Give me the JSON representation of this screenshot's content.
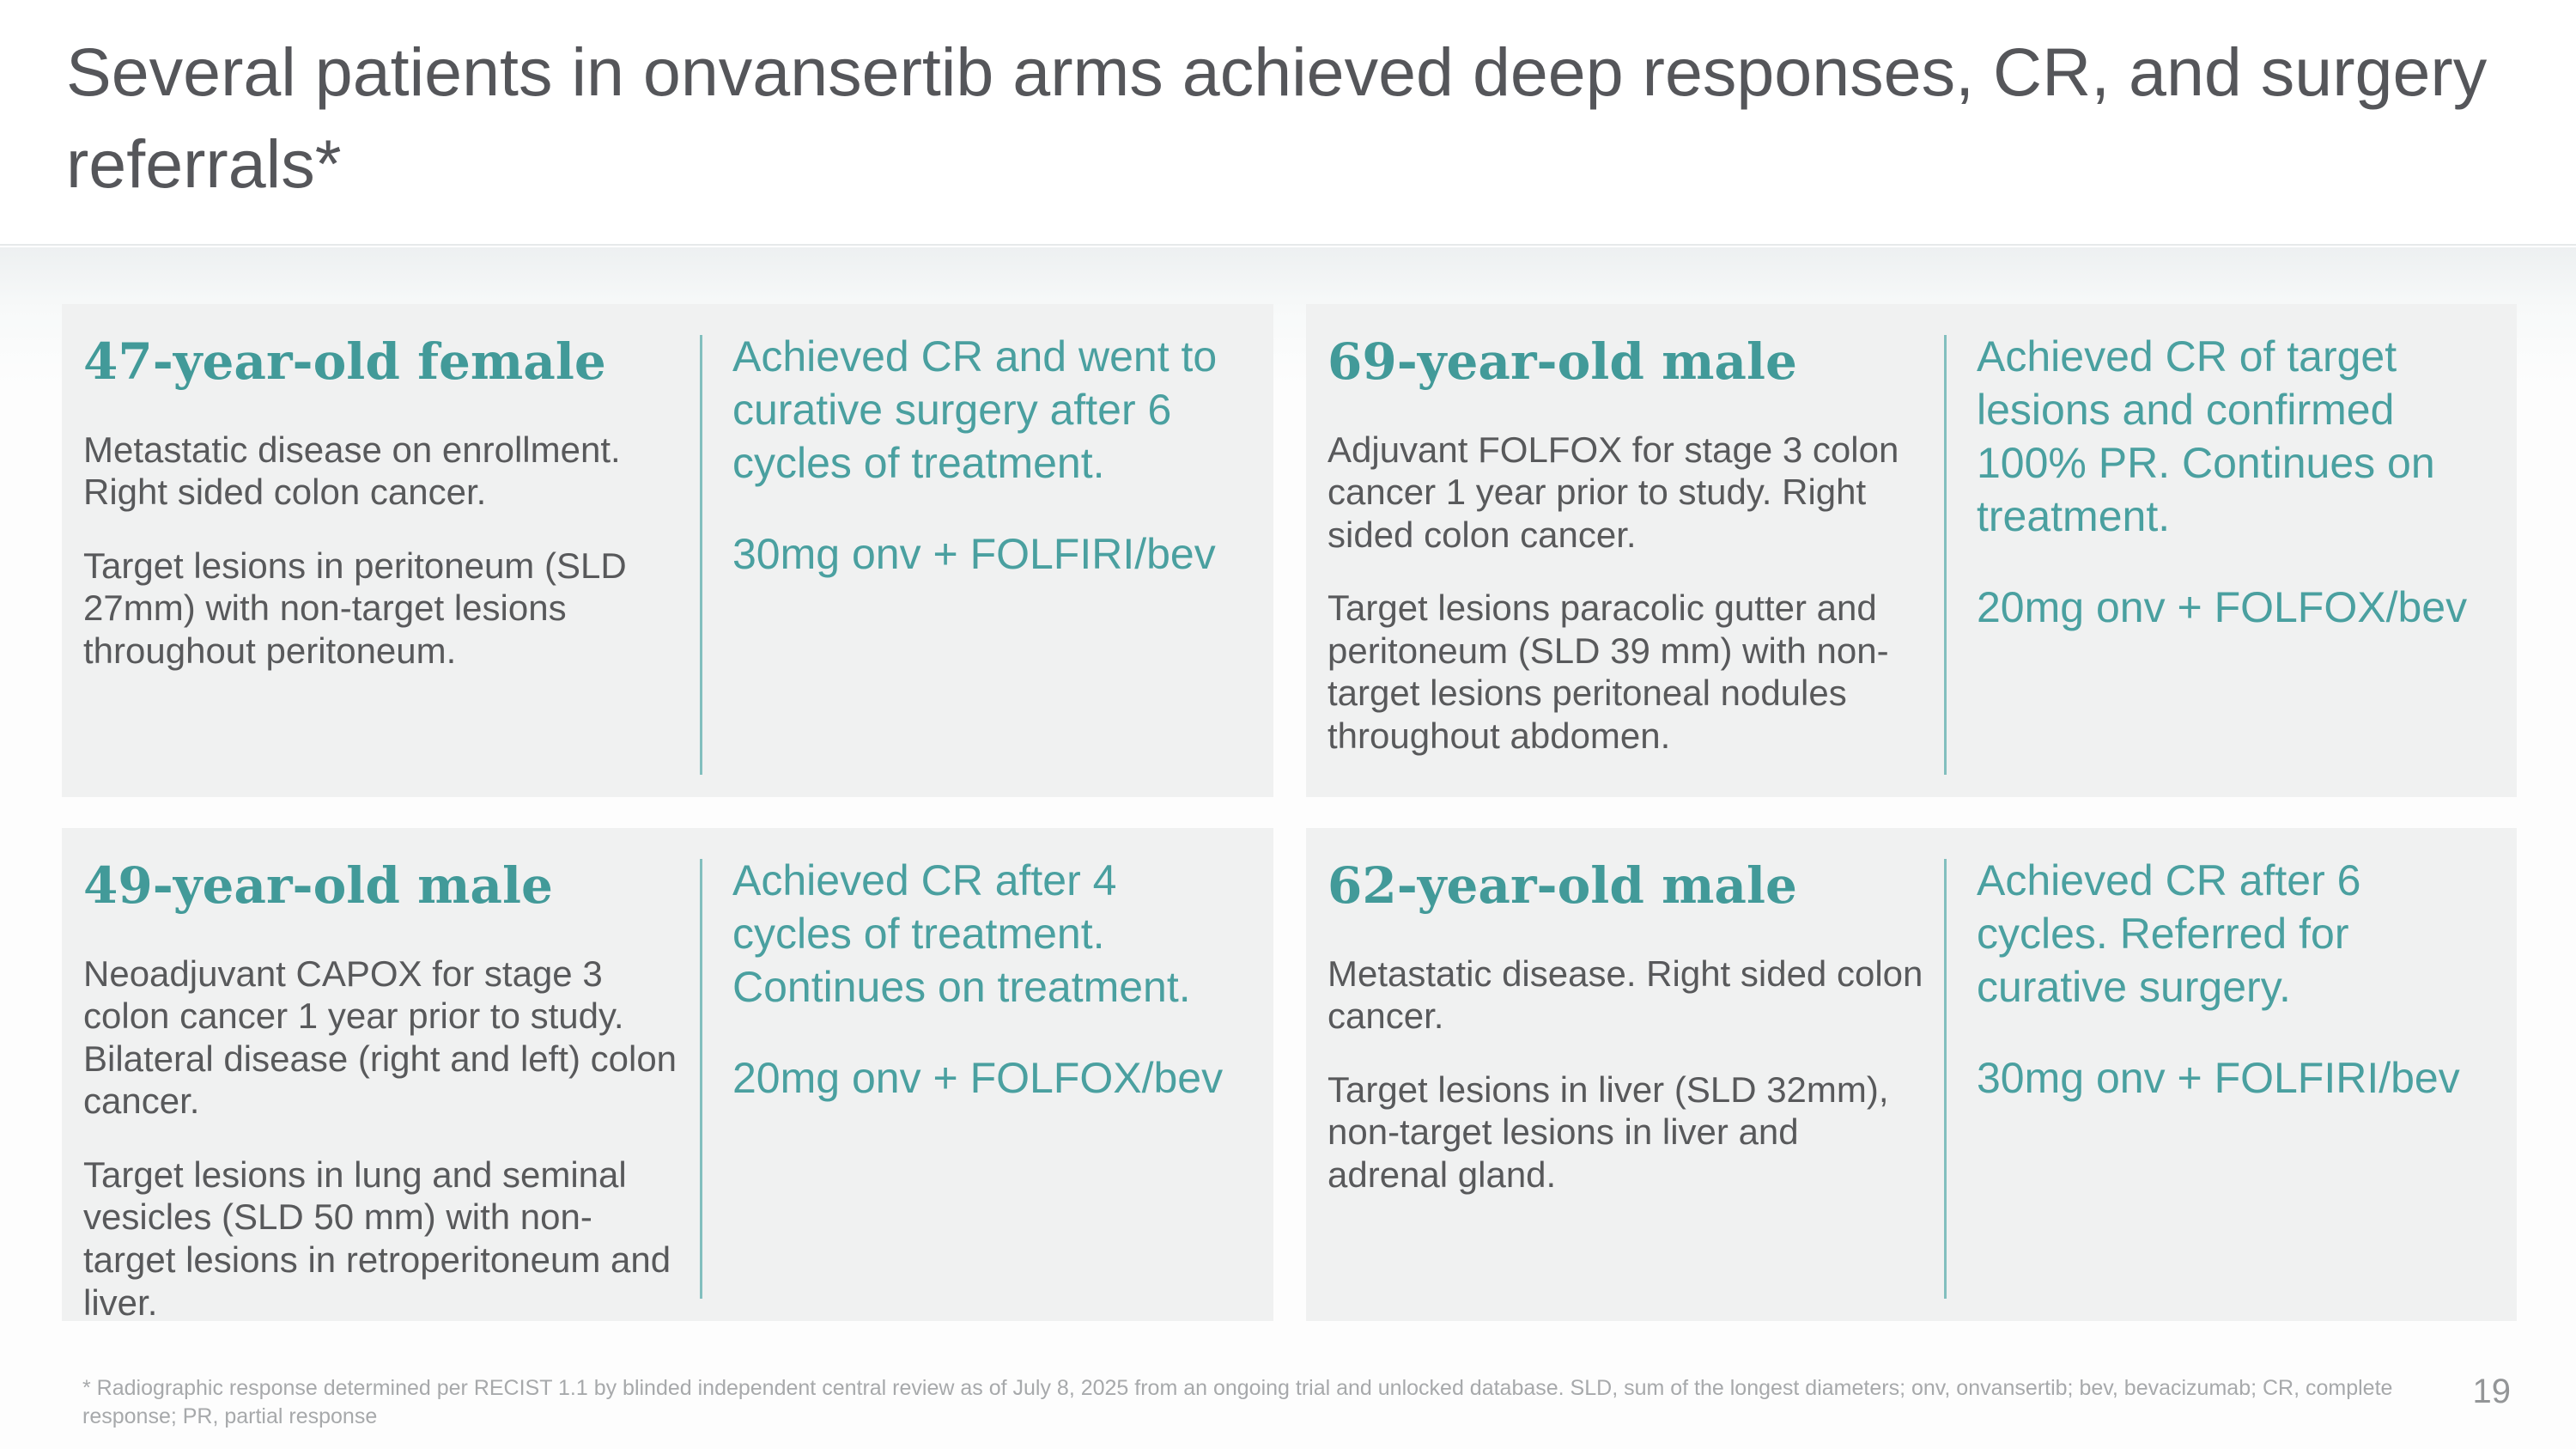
{
  "slide": {
    "title": "Several patients in onvansertib arms achieved deep responses, CR, and surgery referrals*",
    "footnote": "* Radiographic response determined per RECIST 1.1 by blinded independent central review as of July 8, 2025 from an ongoing trial and unlocked database. SLD, sum of the longest diameters; onv, onvansertib; bev, bevacizumab; CR, complete response; PR, partial response",
    "page_number": "19"
  },
  "colors": {
    "heading_teal": "#429a99",
    "accent_text_teal": "#4aa0a0",
    "divider_teal": "#82bfbe",
    "title_gray": "#55565a",
    "body_gray": "#58595b",
    "card_background": "#f0f1f1",
    "footnote_gray": "#a7a9ab",
    "page_number_gray": "#939597"
  },
  "cards": [
    {
      "heading": "47-year-old female",
      "history": "Metastatic disease on enrollment. Right sided colon cancer.",
      "lesions": "Target lesions in peritoneum (SLD 27mm) with non-target lesions throughout peritoneum.",
      "outcome": "Achieved CR and went to curative surgery after 6 cycles of treatment.",
      "regimen": "30mg onv + FOLFIRI/bev"
    },
    {
      "heading": "69-year-old male",
      "history": "Adjuvant FOLFOX for stage 3 colon cancer 1 year prior to study. Right sided colon cancer.",
      "lesions": "Target lesions paracolic gutter and peritoneum (SLD 39 mm) with non-target lesions peritoneal nodules throughout abdomen.",
      "outcome": "Achieved CR of target lesions and confirmed 100% PR. Continues on treatment.",
      "regimen": "20mg onv + FOLFOX/bev"
    },
    {
      "heading": "49-year-old male",
      "history": "Neoadjuvant CAPOX for stage 3 colon cancer 1 year prior to study. Bilateral disease (right and left) colon cancer.",
      "lesions": "Target lesions in lung and seminal vesicles (SLD 50 mm) with non-target lesions in retroperitoneum and liver.",
      "outcome": "Achieved CR after 4 cycles of treatment. Continues on treatment.",
      "regimen": "20mg onv + FOLFOX/bev"
    },
    {
      "heading": "62-year-old male",
      "history": "Metastatic disease. Right sided colon cancer.",
      "lesions": "Target lesions in liver (SLD 32mm), non-target lesions in liver and adrenal gland.",
      "outcome": "Achieved CR after 6 cycles. Referred for curative surgery.",
      "regimen": "30mg onv + FOLFIRI/bev"
    }
  ]
}
